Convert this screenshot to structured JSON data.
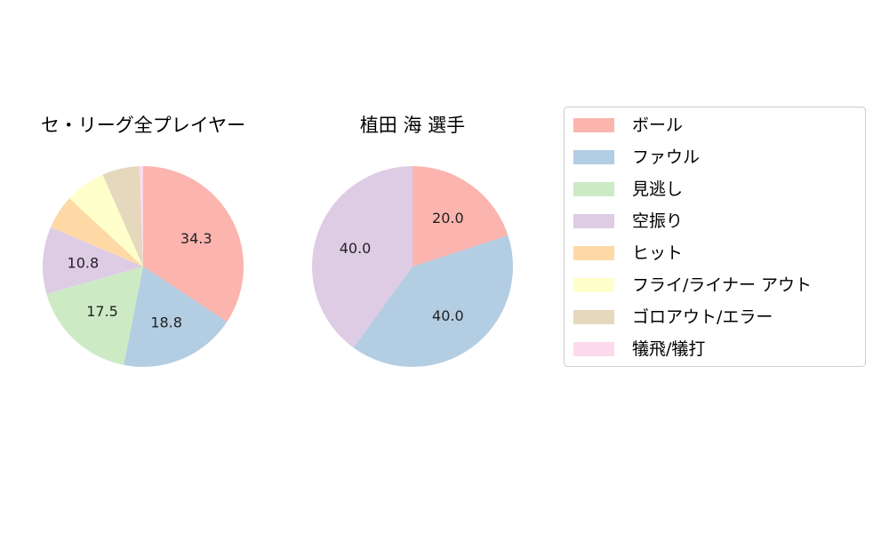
{
  "categories": [
    "ボール",
    "ファウル",
    "見逃し",
    "空振り",
    "ヒット",
    "フライ/ライナー アウト",
    "ゴロアウト/エラー",
    "犠飛/犠打"
  ],
  "colors": [
    "#fbb4ae",
    "#b3cde3",
    "#ccebc5",
    "#decbe4",
    "#fed9a6",
    "#ffffcc",
    "#e5d8bd",
    "#fddaec"
  ],
  "chart_data": [
    {
      "type": "pie",
      "title": "セ・リーグ全プレイヤー",
      "categories": [
        "ボール",
        "ファウル",
        "見逃し",
        "空振り",
        "ヒット",
        "フライ/ライナー アウト",
        "ゴロアウト/エラー",
        "犠飛/犠打"
      ],
      "values": [
        34.3,
        18.8,
        17.5,
        10.8,
        5.5,
        6.5,
        6.0,
        0.6
      ],
      "value_labels": [
        "34.3",
        "18.8",
        "17.5",
        "10.8",
        "",
        "",
        "",
        ""
      ],
      "start": "top",
      "direction": "clockwise"
    },
    {
      "type": "pie",
      "title": "植田 海  選手",
      "categories": [
        "ボール",
        "ファウル",
        "見逃し",
        "空振り",
        "ヒット",
        "フライ/ライナー アウト",
        "ゴロアウト/エラー",
        "犠飛/犠打"
      ],
      "values": [
        20.0,
        40.0,
        0,
        40.0,
        0,
        0,
        0,
        0
      ],
      "value_labels": [
        "20.0",
        "40.0",
        "",
        "40.0",
        "",
        "",
        "",
        ""
      ],
      "start": "top",
      "direction": "clockwise"
    }
  ],
  "legend": {
    "placement": "right",
    "items": [
      "ボール",
      "ファウル",
      "見逃し",
      "空振り",
      "ヒット",
      "フライ/ライナー アウト",
      "ゴロアウト/エラー",
      "犠飛/犠打"
    ]
  }
}
